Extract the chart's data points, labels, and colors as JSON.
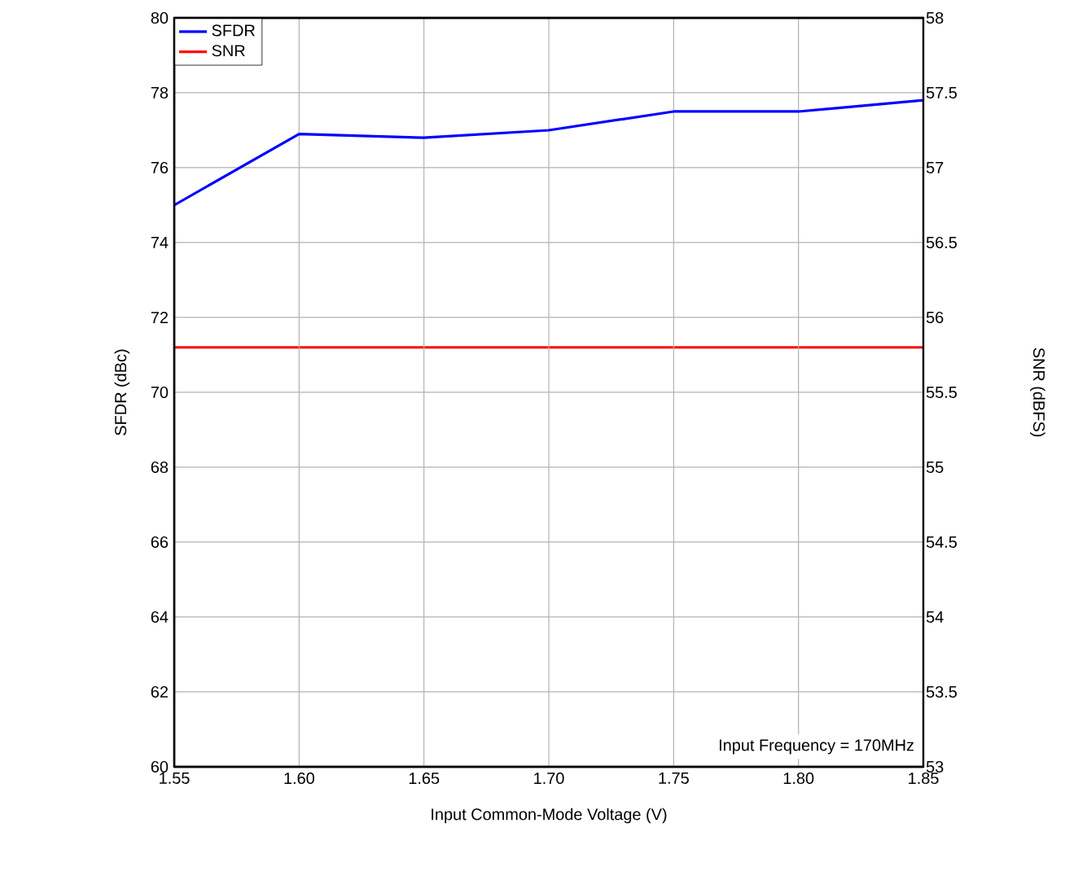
{
  "chart_data": {
    "type": "line",
    "xlabel": "Input Common-Mode Voltage (V)",
    "ylabel": "SFDR (dBc)",
    "y2label": "SNR (dBFS)",
    "x": [
      1.55,
      1.6,
      1.65,
      1.7,
      1.75,
      1.8,
      1.85
    ],
    "series": [
      {
        "name": "SFDR",
        "color": "#0000ff",
        "values": [
          75.0,
          76.9,
          76.8,
          77.0,
          77.5,
          77.5,
          77.8
        ]
      },
      {
        "name": "SNR",
        "color": "#ff0000",
        "axis": "y2",
        "values": [
          55.8,
          55.8,
          55.8,
          55.8,
          55.8,
          55.8,
          55.8
        ]
      }
    ],
    "xlim": [
      1.55,
      1.85
    ],
    "xticks": [
      {
        "value": 1.55,
        "label": "1.55"
      },
      {
        "value": 1.6,
        "label": "1.60"
      },
      {
        "value": 1.65,
        "label": "1.65"
      },
      {
        "value": 1.7,
        "label": "1.70"
      },
      {
        "value": 1.75,
        "label": "1.75"
      },
      {
        "value": 1.8,
        "label": "1.80"
      },
      {
        "value": 1.85,
        "label": "1.85"
      }
    ],
    "ylim": [
      60,
      80
    ],
    "yticks": [
      60,
      62,
      64,
      66,
      68,
      70,
      72,
      74,
      76,
      78,
      80
    ],
    "y2lim": [
      53,
      58
    ],
    "y2ticks": [
      53,
      53.5,
      54,
      54.5,
      55,
      55.5,
      56,
      56.5,
      57,
      57.5,
      58
    ],
    "annotations": [
      "Input Frequency = 170MHz"
    ],
    "grid": true,
    "legend": "top left"
  }
}
